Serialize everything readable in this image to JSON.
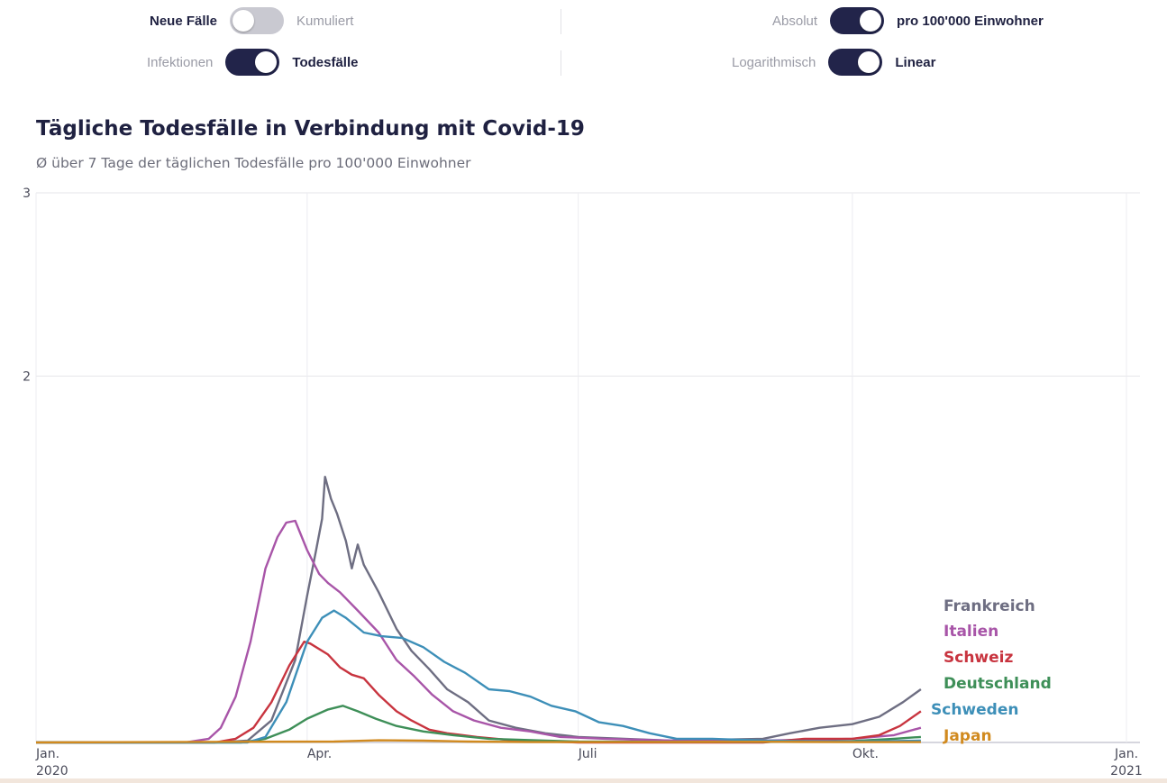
{
  "toggles": {
    "faelle_left": "Neue Fälle",
    "faelle_right": "Kumuliert",
    "typ_left": "Infektionen",
    "typ_right": "Todesfälle",
    "scale_left": "Absolut",
    "scale_right": "pro 100'000 Einwohner",
    "axis_left": "Logarithmisch",
    "axis_right": "Linear"
  },
  "header": {
    "title": "Tägliche Todesfälle in Verbindung mit Covid-19",
    "subtitle": "Ø über 7 Tage der täglichen Todesfälle pro 100'000 Einwohner"
  },
  "chart_data": {
    "type": "line",
    "title": "Tägliche Todesfälle in Verbindung mit Covid-19",
    "subtitle": "Ø über 7 Tage der täglichen Todesfälle pro 100'000 Einwohner",
    "ylim": [
      0,
      3
    ],
    "yticks": [
      "2",
      "3"
    ],
    "xrange": [
      "2020-01-01",
      "2021-01-01"
    ],
    "xticks": [
      {
        "date": "2020-01-01",
        "line1": "Jan.",
        "line2": "2020"
      },
      {
        "date": "2020-04-01",
        "line1": "Apr.",
        "line2": ""
      },
      {
        "date": "2020-07-01",
        "line1": "Juli",
        "line2": ""
      },
      {
        "date": "2020-10-01",
        "line1": "Okt.",
        "line2": ""
      },
      {
        "date": "2021-01-01",
        "line1": "Jan.",
        "line2": "2021"
      }
    ],
    "grid": true,
    "legend_placement": "right-end",
    "series": [
      {
        "name": "Frankreich",
        "color": "#6e6e82",
        "points": [
          [
            "2020-01-01",
            0
          ],
          [
            "2020-03-01",
            0
          ],
          [
            "2020-03-12",
            0.01
          ],
          [
            "2020-03-20",
            0.12
          ],
          [
            "2020-03-28",
            0.45
          ],
          [
            "2020-04-01",
            0.8
          ],
          [
            "2020-04-04",
            1.05
          ],
          [
            "2020-04-06",
            1.22
          ],
          [
            "2020-04-07",
            1.45
          ],
          [
            "2020-04-09",
            1.33
          ],
          [
            "2020-04-11",
            1.25
          ],
          [
            "2020-04-14",
            1.1
          ],
          [
            "2020-04-16",
            0.95
          ],
          [
            "2020-04-18",
            1.08
          ],
          [
            "2020-04-20",
            0.97
          ],
          [
            "2020-04-25",
            0.82
          ],
          [
            "2020-05-01",
            0.62
          ],
          [
            "2020-05-06",
            0.5
          ],
          [
            "2020-05-12",
            0.4
          ],
          [
            "2020-05-18",
            0.29
          ],
          [
            "2020-05-25",
            0.22
          ],
          [
            "2020-06-01",
            0.12
          ],
          [
            "2020-06-10",
            0.08
          ],
          [
            "2020-06-20",
            0.05
          ],
          [
            "2020-07-01",
            0.03
          ],
          [
            "2020-08-01",
            0.01
          ],
          [
            "2020-09-01",
            0.02
          ],
          [
            "2020-09-10",
            0.05
          ],
          [
            "2020-09-20",
            0.08
          ],
          [
            "2020-10-01",
            0.1
          ],
          [
            "2020-10-10",
            0.14
          ],
          [
            "2020-10-18",
            0.22
          ],
          [
            "2020-10-24",
            0.29
          ]
        ]
      },
      {
        "name": "Italien",
        "color": "#a855a8",
        "points": [
          [
            "2020-01-01",
            0
          ],
          [
            "2020-02-20",
            0
          ],
          [
            "2020-02-28",
            0.02
          ],
          [
            "2020-03-03",
            0.08
          ],
          [
            "2020-03-08",
            0.25
          ],
          [
            "2020-03-13",
            0.55
          ],
          [
            "2020-03-18",
            0.95
          ],
          [
            "2020-03-22",
            1.12
          ],
          [
            "2020-03-25",
            1.2
          ],
          [
            "2020-03-28",
            1.21
          ],
          [
            "2020-04-01",
            1.05
          ],
          [
            "2020-04-05",
            0.92
          ],
          [
            "2020-04-08",
            0.87
          ],
          [
            "2020-04-12",
            0.82
          ],
          [
            "2020-04-18",
            0.72
          ],
          [
            "2020-04-25",
            0.6
          ],
          [
            "2020-05-01",
            0.45
          ],
          [
            "2020-05-07",
            0.36
          ],
          [
            "2020-05-13",
            0.26
          ],
          [
            "2020-05-20",
            0.17
          ],
          [
            "2020-05-27",
            0.12
          ],
          [
            "2020-06-05",
            0.08
          ],
          [
            "2020-06-15",
            0.06
          ],
          [
            "2020-06-25",
            0.03
          ],
          [
            "2020-07-10",
            0.02
          ],
          [
            "2020-08-01",
            0.01
          ],
          [
            "2020-09-01",
            0.01
          ],
          [
            "2020-10-01",
            0.02
          ],
          [
            "2020-10-15",
            0.04
          ],
          [
            "2020-10-24",
            0.08
          ]
        ]
      },
      {
        "name": "Schweiz",
        "color": "#c8343f",
        "points": [
          [
            "2020-01-01",
            0
          ],
          [
            "2020-03-01",
            0
          ],
          [
            "2020-03-08",
            0.02
          ],
          [
            "2020-03-14",
            0.08
          ],
          [
            "2020-03-20",
            0.22
          ],
          [
            "2020-03-26",
            0.42
          ],
          [
            "2020-03-31",
            0.55
          ],
          [
            "2020-04-02",
            0.54
          ],
          [
            "2020-04-08",
            0.48
          ],
          [
            "2020-04-12",
            0.41
          ],
          [
            "2020-04-16",
            0.37
          ],
          [
            "2020-04-20",
            0.35
          ],
          [
            "2020-04-25",
            0.26
          ],
          [
            "2020-05-01",
            0.17
          ],
          [
            "2020-05-06",
            0.12
          ],
          [
            "2020-05-12",
            0.07
          ],
          [
            "2020-05-18",
            0.05
          ],
          [
            "2020-05-28",
            0.03
          ],
          [
            "2020-06-10",
            0.01
          ],
          [
            "2020-07-01",
            0
          ],
          [
            "2020-08-01",
            0
          ],
          [
            "2020-09-01",
            0
          ],
          [
            "2020-09-15",
            0.02
          ],
          [
            "2020-10-01",
            0.02
          ],
          [
            "2020-10-10",
            0.04
          ],
          [
            "2020-10-17",
            0.09
          ],
          [
            "2020-10-24",
            0.17
          ]
        ]
      },
      {
        "name": "Deutschland",
        "color": "#3e8f58",
        "points": [
          [
            "2020-01-01",
            0
          ],
          [
            "2020-03-10",
            0
          ],
          [
            "2020-03-18",
            0.02
          ],
          [
            "2020-03-26",
            0.07
          ],
          [
            "2020-04-01",
            0.13
          ],
          [
            "2020-04-08",
            0.18
          ],
          [
            "2020-04-13",
            0.2
          ],
          [
            "2020-04-18",
            0.17
          ],
          [
            "2020-04-24",
            0.13
          ],
          [
            "2020-05-01",
            0.09
          ],
          [
            "2020-05-10",
            0.06
          ],
          [
            "2020-05-20",
            0.04
          ],
          [
            "2020-06-01",
            0.02
          ],
          [
            "2020-06-20",
            0.01
          ],
          [
            "2020-07-01",
            0.005
          ],
          [
            "2020-08-01",
            0.003
          ],
          [
            "2020-09-01",
            0.003
          ],
          [
            "2020-10-01",
            0.008
          ],
          [
            "2020-10-15",
            0.02
          ],
          [
            "2020-10-24",
            0.03
          ]
        ]
      },
      {
        "name": "Schweden",
        "color": "#3d8fb8",
        "points": [
          [
            "2020-01-01",
            0
          ],
          [
            "2020-03-12",
            0
          ],
          [
            "2020-03-18",
            0.03
          ],
          [
            "2020-03-25",
            0.22
          ],
          [
            "2020-04-01",
            0.55
          ],
          [
            "2020-04-06",
            0.68
          ],
          [
            "2020-04-10",
            0.72
          ],
          [
            "2020-04-14",
            0.68
          ],
          [
            "2020-04-20",
            0.6
          ],
          [
            "2020-04-26",
            0.58
          ],
          [
            "2020-05-03",
            0.57
          ],
          [
            "2020-05-10",
            0.52
          ],
          [
            "2020-05-17",
            0.44
          ],
          [
            "2020-05-24",
            0.38
          ],
          [
            "2020-06-01",
            0.29
          ],
          [
            "2020-06-08",
            0.28
          ],
          [
            "2020-06-15",
            0.25
          ],
          [
            "2020-06-22",
            0.2
          ],
          [
            "2020-06-30",
            0.17
          ],
          [
            "2020-07-08",
            0.11
          ],
          [
            "2020-07-16",
            0.09
          ],
          [
            "2020-07-25",
            0.05
          ],
          [
            "2020-08-03",
            0.02
          ],
          [
            "2020-08-15",
            0.02
          ],
          [
            "2020-09-01",
            0.01
          ],
          [
            "2020-10-01",
            0.005
          ],
          [
            "2020-10-24",
            0.01
          ]
        ]
      },
      {
        "name": "Japan",
        "color": "#d18a1f",
        "points": [
          [
            "2020-01-01",
            0
          ],
          [
            "2020-04-10",
            0.005
          ],
          [
            "2020-04-25",
            0.012
          ],
          [
            "2020-05-10",
            0.01
          ],
          [
            "2020-05-25",
            0.005
          ],
          [
            "2020-06-15",
            0.002
          ],
          [
            "2020-08-01",
            0.003
          ],
          [
            "2020-09-01",
            0.004
          ],
          [
            "2020-10-01",
            0.002
          ],
          [
            "2020-10-24",
            0.002
          ]
        ]
      }
    ]
  }
}
